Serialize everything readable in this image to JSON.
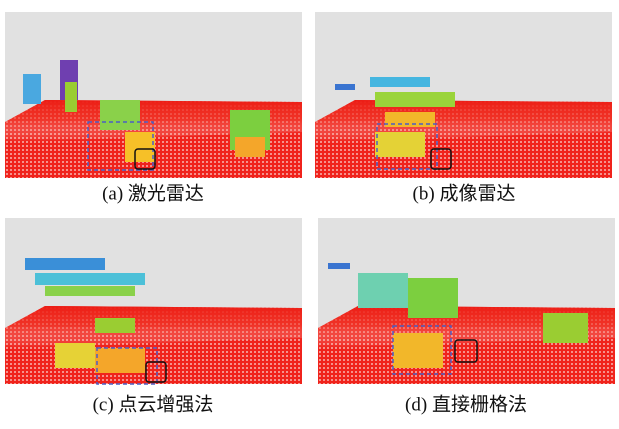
{
  "figure": {
    "panels": [
      {
        "caption": "(a) 激光雷达"
      },
      {
        "caption": "(b) 成像雷达"
      },
      {
        "caption": "(c) 点云增强法"
      },
      {
        "caption": "(d) 直接栅格法"
      }
    ]
  }
}
